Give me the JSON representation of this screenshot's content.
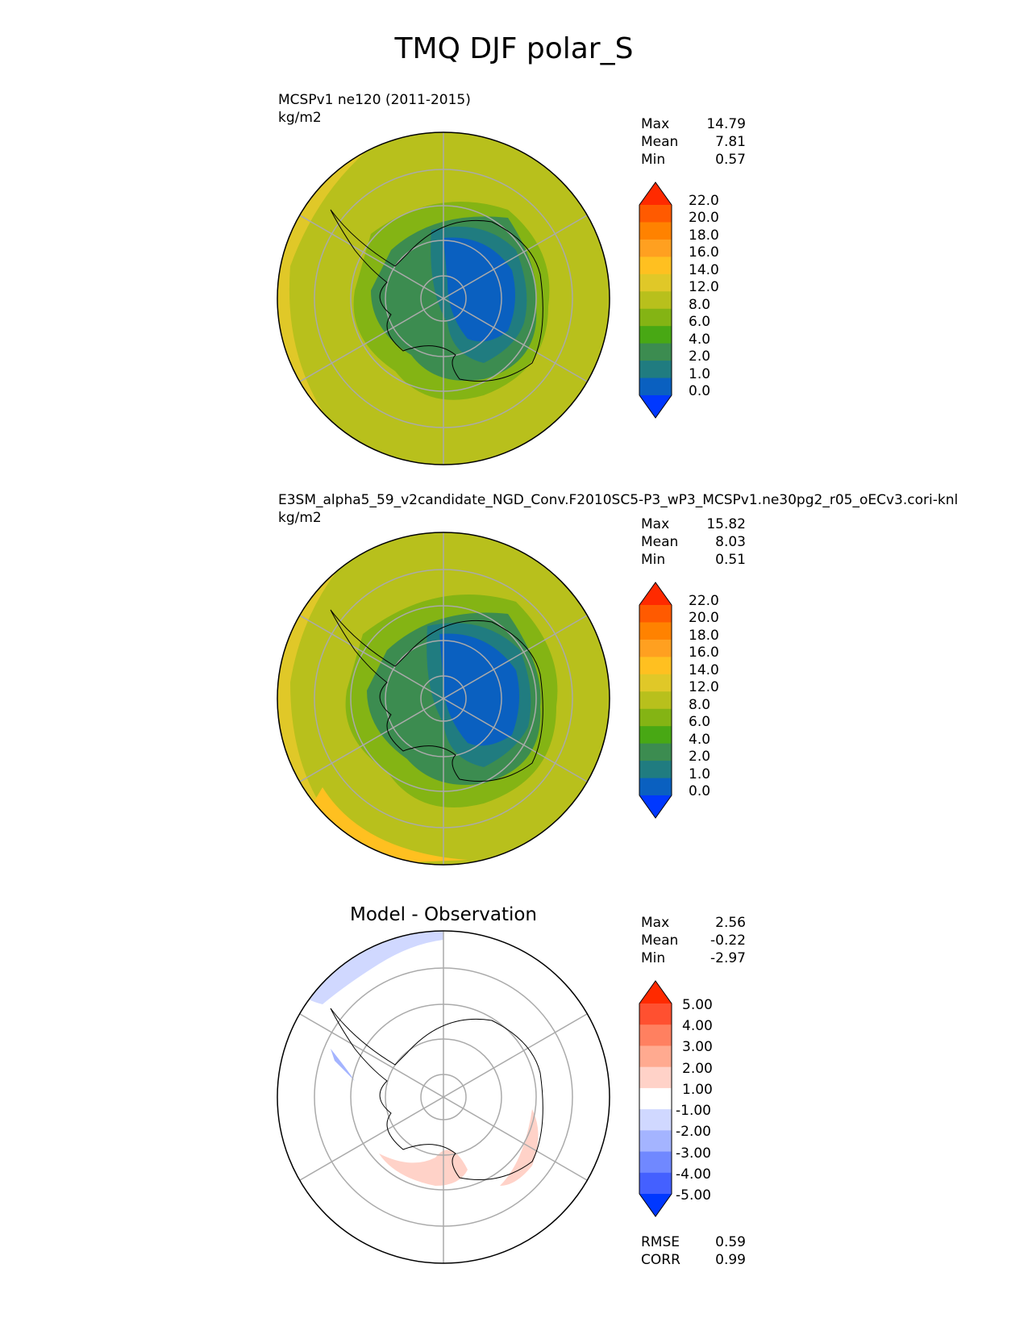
{
  "title": "TMQ DJF polar_S",
  "panels": [
    {
      "id": "test",
      "title_line1": "MCSPv1 ne120 (2011-2015)",
      "title_line2": "kg/m2",
      "stats": [
        {
          "label": "Max",
          "value": "14.79"
        },
        {
          "label": "Mean",
          "value": "7.81"
        },
        {
          "label": "Min",
          "value": "0.57"
        }
      ]
    },
    {
      "id": "reference",
      "title_line1": "E3SM_alpha5_59_v2candidate_NGD_Conv.F2010SC5-P3_wP3_MCSPv1.ne30pg2_r05_oECv3.cori-knl",
      "title_line2": "kg/m2",
      "stats": [
        {
          "label": "Max",
          "value": "15.82"
        },
        {
          "label": "Mean",
          "value": "8.03"
        },
        {
          "label": "Min",
          "value": "0.51"
        }
      ]
    },
    {
      "id": "diff",
      "center_title": "Model - Observation",
      "stats": [
        {
          "label": "Max",
          "value": "2.56"
        },
        {
          "label": "Mean",
          "value": "-0.22"
        },
        {
          "label": "Min",
          "value": "-2.97"
        }
      ],
      "extra_stats": [
        {
          "label": "RMSE",
          "value": "0.59"
        },
        {
          "label": "CORR",
          "value": "0.99"
        }
      ]
    }
  ],
  "colorbars": {
    "field": {
      "ticks": [
        "22.0",
        "20.0",
        "18.0",
        "16.0",
        "14.0",
        "12.0",
        "8.0",
        "6.0",
        "4.0",
        "2.0",
        "1.0",
        "0.0"
      ],
      "colors": [
        "#ff2a00",
        "#ff5a00",
        "#ff8200",
        "#ffa020",
        "#ffc020",
        "#e0c828",
        "#b8c01c",
        "#84b414",
        "#48a814",
        "#3c8c50",
        "#207c80",
        "#0a60c0",
        "#0038ff"
      ]
    },
    "diff": {
      "ticks": [
        "5.00",
        "4.00",
        "3.00",
        "2.00",
        "1.00",
        "-1.00",
        "-2.00",
        "-3.00",
        "-4.00",
        "-5.00"
      ],
      "colors": [
        "#ff2a00",
        "#ff5030",
        "#ff8060",
        "#ffaa90",
        "#ffd2c8",
        "#ffffff",
        "#d0d8ff",
        "#a4b4ff",
        "#7088ff",
        "#4460ff",
        "#0038ff"
      ]
    }
  },
  "chart_data": [
    {
      "type": "heatmap",
      "projection": "south-polar-stereographic",
      "title": "MCSPv1 ne120 (2011-2015)",
      "units": "kg/m2",
      "stats": {
        "max": 14.79,
        "mean": 7.81,
        "min": 0.57
      },
      "colorbar_levels": [
        0,
        1,
        2,
        4,
        6,
        8,
        12,
        14,
        16,
        18,
        20,
        22
      ],
      "colorbar_extend": "both",
      "grid": true
    },
    {
      "type": "heatmap",
      "projection": "south-polar-stereographic",
      "title": "E3SM_alpha5_59_v2candidate_NGD_Conv.F2010SC5-P3_wP3_MCSPv1.ne30pg2_r05_oECv3.cori-knl",
      "units": "kg/m2",
      "stats": {
        "max": 15.82,
        "mean": 8.03,
        "min": 0.51
      },
      "colorbar_levels": [
        0,
        1,
        2,
        4,
        6,
        8,
        12,
        14,
        16,
        18,
        20,
        22
      ],
      "colorbar_extend": "both",
      "grid": true
    },
    {
      "type": "heatmap",
      "projection": "south-polar-stereographic",
      "title": "Model - Observation",
      "stats": {
        "max": 2.56,
        "mean": -0.22,
        "min": -2.97,
        "rmse": 0.59,
        "corr": 0.99
      },
      "colorbar_levels": [
        -5,
        -4,
        -3,
        -2,
        -1,
        1,
        2,
        3,
        4,
        5
      ],
      "colorbar_extend": "both",
      "grid": true
    }
  ]
}
